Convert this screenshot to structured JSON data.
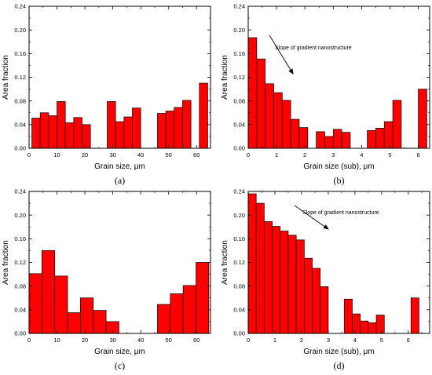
{
  "chart_data": [
    {
      "type": "bar",
      "panel_label": "(a)",
      "xlabel": "Grain size, μm",
      "ylabel": "Area fraction",
      "xlim": [
        0,
        65
      ],
      "ylim": [
        0,
        0.24
      ],
      "xticks": [
        0,
        10,
        20,
        30,
        40,
        50,
        60
      ],
      "yticks": [
        0.0,
        0.04,
        0.08,
        0.12,
        0.16,
        0.2,
        0.24
      ],
      "bar_width": 3,
      "color": "#ff0000",
      "x": [
        2.5,
        5.5,
        8.5,
        11.5,
        14.5,
        17.5,
        20.5,
        29.5,
        32.5,
        35.5,
        38.5,
        47.5,
        50.5,
        53.5,
        56.5,
        62.5
      ],
      "values": [
        0.051,
        0.06,
        0.055,
        0.079,
        0.043,
        0.052,
        0.04,
        0.079,
        0.045,
        0.053,
        0.068,
        0.059,
        0.063,
        0.069,
        0.081,
        0.11
      ],
      "annotation": null
    },
    {
      "type": "bar",
      "panel_label": "(b)",
      "xlabel": "Grain size (sub), μm",
      "ylabel": "Area fraction",
      "xlim": [
        0,
        6.4
      ],
      "ylim": [
        0,
        0.24
      ],
      "xticks": [
        0,
        1,
        2,
        3,
        4,
        5,
        6
      ],
      "yticks": [
        0.0,
        0.04,
        0.08,
        0.12,
        0.16,
        0.2,
        0.24
      ],
      "bar_width": 0.3,
      "color": "#ff0000",
      "x": [
        0.15,
        0.45,
        0.75,
        1.05,
        1.35,
        1.65,
        1.95,
        2.55,
        2.85,
        3.15,
        3.45,
        4.35,
        4.65,
        4.95,
        5.25,
        6.15
      ],
      "values": [
        0.187,
        0.151,
        0.109,
        0.094,
        0.081,
        0.049,
        0.035,
        0.028,
        0.02,
        0.032,
        0.027,
        0.03,
        0.034,
        0.045,
        0.081,
        0.1
      ],
      "annotation": {
        "text": "Slope of gradient nanostructure"
      }
    },
    {
      "type": "bar",
      "panel_label": "(c)",
      "xlabel": "Grain size, μm",
      "ylabel": "Area fraction",
      "xlim": [
        0,
        65
      ],
      "ylim": [
        0,
        0.24
      ],
      "xticks": [
        0,
        10,
        20,
        30,
        40,
        50,
        60
      ],
      "yticks": [
        0.0,
        0.04,
        0.08,
        0.12,
        0.16,
        0.2,
        0.24
      ],
      "bar_width": 4.6,
      "color": "#ff0000",
      "x": [
        2.3,
        6.9,
        11.5,
        16.1,
        20.7,
        25.3,
        29.9,
        48.3,
        52.9,
        57.5,
        62.1
      ],
      "values": [
        0.101,
        0.14,
        0.097,
        0.035,
        0.06,
        0.039,
        0.02,
        0.049,
        0.067,
        0.081,
        0.12
      ],
      "x_override_note": null,
      "annotation": null
    },
    {
      "type": "bar",
      "panel_label": "(d)",
      "xlabel": "Grain size (sub), μm",
      "ylabel": "Area fraction",
      "xlim": [
        0,
        6.8
      ],
      "ylim": [
        0,
        0.24
      ],
      "xticks": [
        0,
        1,
        2,
        3,
        4,
        5,
        6
      ],
      "yticks": [
        0.0,
        0.04,
        0.08,
        0.12,
        0.16,
        0.2,
        0.24
      ],
      "bar_width": 0.3,
      "color": "#ff0000",
      "x": [
        0.15,
        0.45,
        0.75,
        1.05,
        1.35,
        1.65,
        1.95,
        2.25,
        2.55,
        2.85,
        3.75,
        4.05,
        4.35,
        4.65,
        4.95,
        6.25,
        6.55
      ],
      "values": [
        0.236,
        0.22,
        0.189,
        0.181,
        0.173,
        0.166,
        0.158,
        0.127,
        0.11,
        0.079,
        0.058,
        0.033,
        0.021,
        0.018,
        0.031,
        0.06,
        0.0
      ],
      "annotation": {
        "text": "Slope of gradient nanostructure"
      }
    }
  ]
}
